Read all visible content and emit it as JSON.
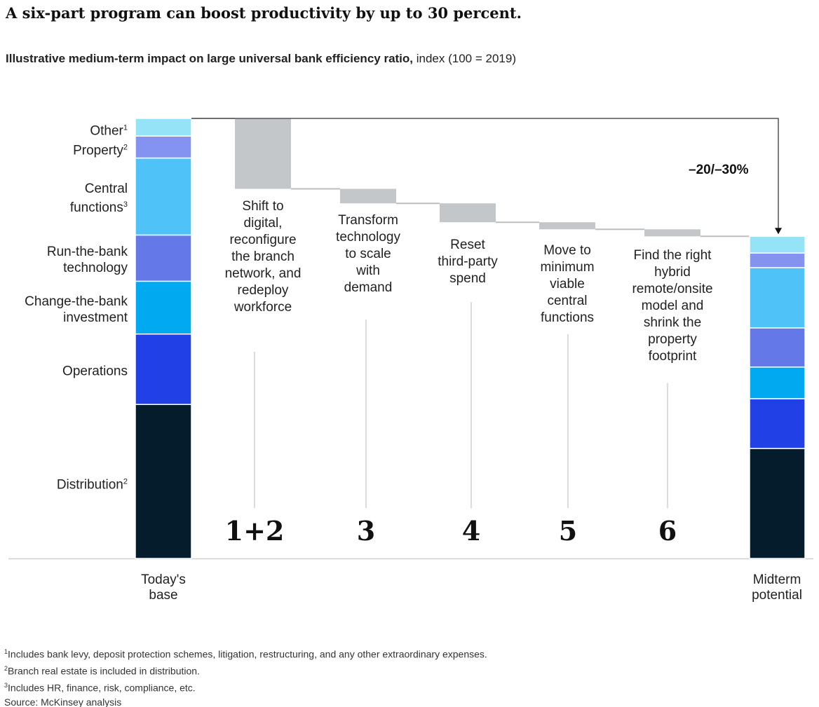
{
  "title": "A six-part program can boost productivity by up to 30 percent.",
  "subtitle": {
    "bold": "Illustrative medium-term impact on large universal bank efficiency ratio,",
    "regular": " index (100 = 2019)"
  },
  "colors": {
    "other": "#95e3f6",
    "property": "#8493f0",
    "central": "#4fc3f7",
    "run": "#6478e8",
    "change": "#00a9f0",
    "operations": "#2140e6",
    "distribution": "#051c2c",
    "step": "#c4c7ca",
    "connector": "#bdbdbd",
    "axis": "#cfcfcf"
  },
  "chart_data": {
    "type": "waterfall",
    "ylim": [
      0,
      100
    ],
    "segments": [
      {
        "key": "distribution",
        "label": "Distribution",
        "sup": "2"
      },
      {
        "key": "operations",
        "label": "Operations",
        "sup": ""
      },
      {
        "key": "change",
        "label": "Change-the-bank\ninvestment",
        "sup": ""
      },
      {
        "key": "run",
        "label": "Run-the-bank\ntechnology",
        "sup": ""
      },
      {
        "key": "central",
        "label": "Central\nfunctions",
        "sup": "3"
      },
      {
        "key": "property",
        "label": "Property",
        "sup": "2"
      },
      {
        "key": "other",
        "label": "Other",
        "sup": "1"
      }
    ],
    "base": {
      "label": "Today's\nbase",
      "values": [
        35,
        16,
        12,
        10.5,
        17.5,
        5,
        4
      ]
    },
    "steps": [
      {
        "number": "1+2",
        "label": "Shift to\ndigital,\nreconfigure\nthe branch\nnetwork, and\nredeploy\nworkforce",
        "value": -16
      },
      {
        "number": "3",
        "label": "Transform\ntechnology\nto scale\nwith\ndemand",
        "value": -3.3
      },
      {
        "number": "4",
        "label": "Reset\nthird-party\nspend",
        "value": -4.3
      },
      {
        "number": "5",
        "label": "Move to\nminimum\nviable\ncentral\nfunctions",
        "value": -1.6
      },
      {
        "number": "6",
        "label": "Find the right\nhybrid\nremote/onsite\nmodel and\nshrink the\nproperty\nfootprint",
        "value": -1.6
      }
    ],
    "result": {
      "label": "Midterm\npotential",
      "values": [
        25,
        11.3,
        7.2,
        8.9,
        13.7,
        3.3,
        3.8
      ]
    },
    "total_change_label": "–20/–30%"
  },
  "footnotes": [
    {
      "sup": "1",
      "text": "Includes bank levy, deposit protection schemes, litigation, restructuring, and any other extraordinary expenses."
    },
    {
      "sup": "2",
      "text": "Branch real estate is included in distribution."
    },
    {
      "sup": "3",
      "text": "Includes HR, finance, risk, compliance, etc."
    },
    {
      "sup": "",
      "text": "Source: McKinsey analysis"
    }
  ]
}
